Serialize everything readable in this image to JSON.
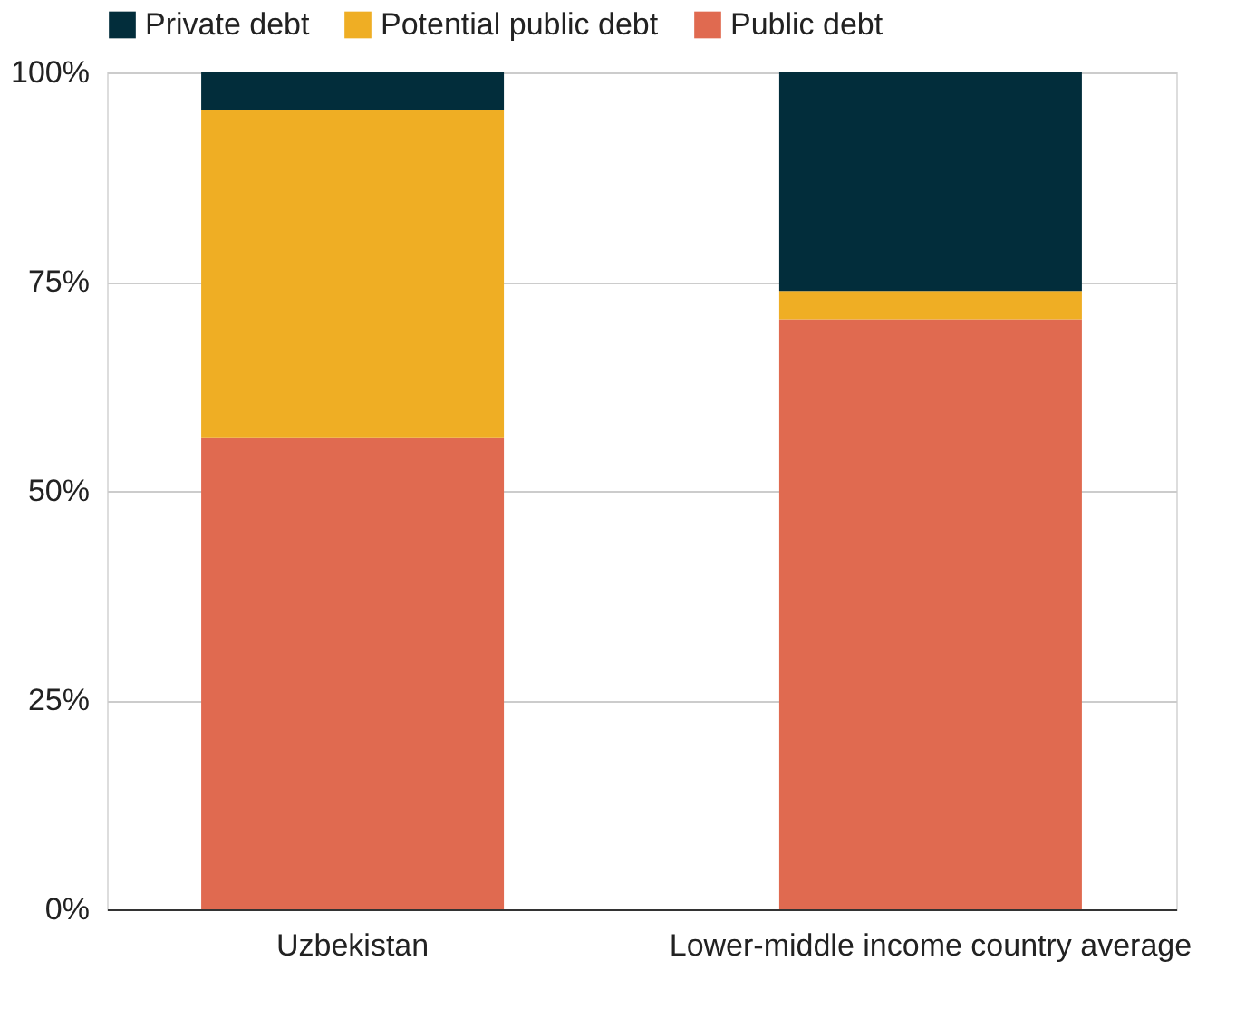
{
  "chart_data": {
    "type": "bar",
    "stacked": true,
    "categories": [
      "Uzbekistan",
      "Lower-middle income country average"
    ],
    "series": [
      {
        "name": "Public debt",
        "color": "#e06a50",
        "values": [
          56.3,
          70.5
        ]
      },
      {
        "name": "Potential public debt",
        "color": "#efae24",
        "values": [
          39.2,
          3.4
        ]
      },
      {
        "name": "Private debt",
        "color": "#022d3b",
        "values": [
          4.5,
          26.1
        ]
      }
    ],
    "ylim": [
      0,
      100
    ],
    "yticks": [
      {
        "value": 0,
        "label": "0%"
      },
      {
        "value": 25,
        "label": "25%"
      },
      {
        "value": 50,
        "label": "50%"
      },
      {
        "value": 75,
        "label": "75%"
      },
      {
        "value": 100,
        "label": "100%"
      }
    ],
    "grid": "y",
    "legend": "top"
  }
}
